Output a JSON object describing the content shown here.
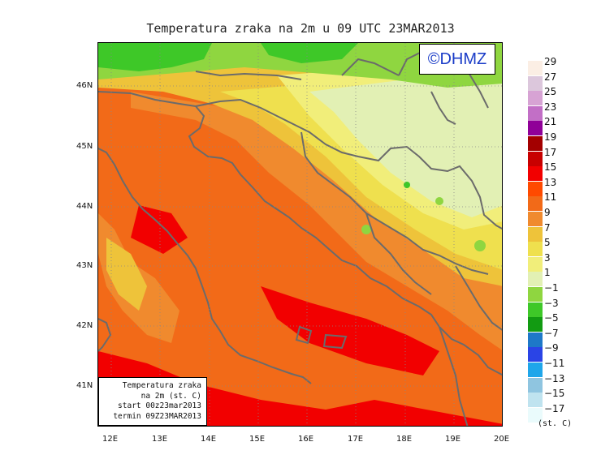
{
  "title": "Temperatura zraka na 2m u 09 UTC 23MAR2013",
  "copyright": "©DHMZ",
  "infobox": {
    "line1": "Temperatura zraka",
    "line2": "na 2m (st. C)",
    "line3": "start 00z23mar2013",
    "line4": "termin 09Z23MAR2013"
  },
  "lat_labels": [
    "46N",
    "45N",
    "44N",
    "43N",
    "42N",
    "41N"
  ],
  "lon_labels": [
    "12E",
    "13E",
    "14E",
    "15E",
    "16E",
    "17E",
    "18E",
    "19E",
    "20E"
  ],
  "legend": {
    "unit": "(st. C)",
    "labels": [
      "29",
      "27",
      "25",
      "23",
      "21",
      "19",
      "17",
      "15",
      "13",
      "11",
      "9",
      "7",
      "5",
      "3",
      "1",
      "−1",
      "−3",
      "−5",
      "−7",
      "−9",
      "−11",
      "−13",
      "−15",
      "−17"
    ],
    "colors": [
      "#fbeee4",
      "#dcc7dc",
      "#d7a3d4",
      "#c26fc6",
      "#900098",
      "#a30000",
      "#c80000",
      "#f20000",
      "#ff4a00",
      "#f26a18",
      "#f08a2e",
      "#eec33a",
      "#efe04e",
      "#f1ee7a",
      "#e2f0b4",
      "#8fd640",
      "#3ec828",
      "#129b12",
      "#1e78c8",
      "#2a44e6",
      "#1fa6ea",
      "#8fc5e0",
      "#bfe3ef",
      "#eafbfc"
    ]
  },
  "map": {
    "region": "Adriatic / Croatia",
    "colors": {
      "sea_warm": "#f26a18",
      "sea_hot": "#f20000",
      "coast_mid": "#f08a2e",
      "inland_yellow": "#efe04e",
      "inland_pale": "#f1ee7a",
      "inland_cool": "#e2f0b4",
      "north_green": "#8fd640",
      "north_dark": "#3ec828",
      "border": "#6b6b6b"
    }
  }
}
